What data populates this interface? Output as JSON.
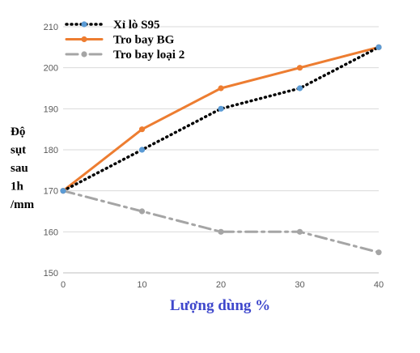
{
  "chart_data": {
    "type": "line",
    "x": [
      0,
      10,
      20,
      30,
      40
    ],
    "xlabel": "Lượng dùng %",
    "ylabel_lines": [
      "Độ",
      "sụt",
      "sau",
      "1h",
      "/mm"
    ],
    "xlim": [
      0,
      40
    ],
    "ylim": [
      150,
      210
    ],
    "xticks": [
      0,
      10,
      20,
      30,
      40
    ],
    "yticks": [
      150,
      160,
      170,
      180,
      190,
      200,
      210
    ],
    "grid": "horizontal",
    "legend_position": "top-left",
    "series": [
      {
        "name": "Xỉ lò S95",
        "values": [
          170,
          180,
          190,
          195,
          205
        ],
        "color": "#000000",
        "marker_color": "#5b9bd5",
        "line_style": "dotted"
      },
      {
        "name": "Tro bay BG",
        "values": [
          170,
          185,
          195,
          200,
          205
        ],
        "color": "#ed7d31",
        "marker_color": "#ed7d31",
        "line_style": "solid"
      },
      {
        "name": "Tro bay loại 2",
        "values": [
          170,
          165,
          160,
          160,
          155
        ],
        "color": "#a5a5a5",
        "marker_color": "#a5a5a5",
        "line_style": "dash-dot"
      }
    ]
  },
  "colors": {
    "xlabel": "#3f48cc",
    "grid": "#d9d9d9",
    "axis": "#bfbfbf"
  }
}
